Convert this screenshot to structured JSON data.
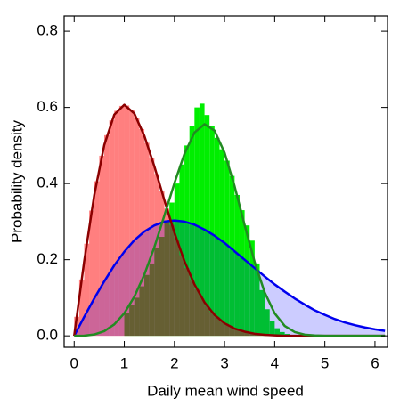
{
  "chart_data": {
    "type": "histogram",
    "xlabel": "Daily mean wind speed",
    "ylabel": "Probability density",
    "xlim": [
      -0.2,
      6.25
    ],
    "ylim": [
      -0.03,
      0.84
    ],
    "xticks": [
      0,
      1,
      2,
      3,
      4,
      5,
      6
    ],
    "yticks": [
      {
        "value": 0,
        "label": "0.0"
      },
      0.2,
      0.4,
      0.6,
      0.8
    ],
    "histograms": [
      {
        "color": "#00ee00",
        "opacity": 1,
        "bins": [
          1.0,
          1.1,
          1.2,
          1.3,
          1.4,
          1.5,
          1.6,
          1.7,
          1.8,
          1.9,
          2.0,
          2.1,
          2.2,
          2.3,
          2.4,
          2.5,
          2.6,
          2.7,
          2.8,
          2.9,
          3.0,
          3.1,
          3.2,
          3.3,
          3.4,
          3.5,
          3.6,
          3.7,
          3.8,
          3.9,
          4.0,
          4.1,
          4.2,
          4.3,
          4.4
        ],
        "values": [
          0.06,
          0.08,
          0.1,
          0.13,
          0.16,
          0.19,
          0.23,
          0.26,
          0.3,
          0.35,
          0.4,
          0.45,
          0.5,
          0.55,
          0.6,
          0.61,
          0.58,
          0.55,
          0.52,
          0.49,
          0.46,
          0.42,
          0.37,
          0.33,
          0.29,
          0.25,
          0.19,
          0.12,
          0.07,
          0.04,
          0.02,
          0.01,
          0.005,
          0.002
        ]
      },
      {
        "color": "#ff0000",
        "opacity": 0.5,
        "bins": [
          0,
          0.1,
          0.2,
          0.3,
          0.4,
          0.5,
          0.6,
          0.7,
          0.8,
          0.9,
          1.0,
          1.1,
          1.2,
          1.3,
          1.4,
          1.5,
          1.6,
          1.7,
          1.8,
          1.9,
          2.0,
          2.1,
          2.2,
          2.3,
          2.4,
          2.5,
          2.6,
          2.7,
          2.8,
          2.9,
          3.0,
          3.1,
          3.2,
          3.3,
          3.4,
          3.5,
          3.6,
          3.7,
          3.8,
          3.9,
          4.0
        ],
        "values": [
          0.05,
          0.148,
          0.242,
          0.329,
          0.406,
          0.473,
          0.527,
          0.566,
          0.591,
          0.604,
          0.605,
          0.593,
          0.572,
          0.543,
          0.507,
          0.468,
          0.425,
          0.38,
          0.334,
          0.291,
          0.25,
          0.212,
          0.178,
          0.148,
          0.122,
          0.098,
          0.079,
          0.063,
          0.05,
          0.038,
          0.029,
          0.022,
          0.017,
          0.012,
          0.009,
          0.006,
          0.005,
          0.003,
          0.002,
          0.002
        ]
      }
    ],
    "curves": {
      "x": [
        0,
        0.2,
        0.4,
        0.6,
        0.8,
        1.0,
        1.2,
        1.4,
        1.6,
        1.8,
        2.0,
        2.2,
        2.4,
        2.6,
        2.8,
        3.0,
        3.2,
        3.4,
        3.6,
        3.8,
        4.0,
        4.2,
        4.4,
        4.6,
        4.8,
        5.0,
        5.2,
        5.4,
        5.6,
        5.8,
        6.0,
        6.2
      ],
      "series": [
        {
          "color": "#0000ee",
          "fill": "rgba(0,0,255,0.2)",
          "values": [
            0,
            0.05,
            0.098,
            0.143,
            0.185,
            0.221,
            0.251,
            0.274,
            0.29,
            0.3,
            0.303,
            0.3,
            0.292,
            0.279,
            0.263,
            0.244,
            0.222,
            0.2,
            0.178,
            0.156,
            0.135,
            0.116,
            0.098,
            0.082,
            0.067,
            0.055,
            0.044,
            0.035,
            0.028,
            0.022,
            0.017,
            0.013
          ]
        },
        {
          "color": "#8b0000",
          "values": [
            0,
            0.196,
            0.369,
            0.501,
            0.581,
            0.607,
            0.584,
            0.525,
            0.445,
            0.356,
            0.271,
            0.196,
            0.135,
            0.088,
            0.055,
            0.033,
            0.019,
            0.011,
            0.0055,
            0.0028,
            0.0013,
            0,
            0,
            0,
            0,
            0,
            0,
            0,
            0,
            0,
            0,
            0
          ]
        },
        {
          "color": "#228b22",
          "values": [
            0,
            0.0004,
            0.0035,
            0.0123,
            0.03,
            0.0593,
            0.1028,
            0.161,
            0.233,
            0.316,
            0.401,
            0.478,
            0.534,
            0.556,
            0.539,
            0.481,
            0.393,
            0.291,
            0.194,
            0.114,
            0.059,
            0.026,
            0.01,
            0.003,
            0.001,
            0,
            0,
            0,
            0,
            0,
            0,
            0
          ]
        }
      ]
    }
  }
}
